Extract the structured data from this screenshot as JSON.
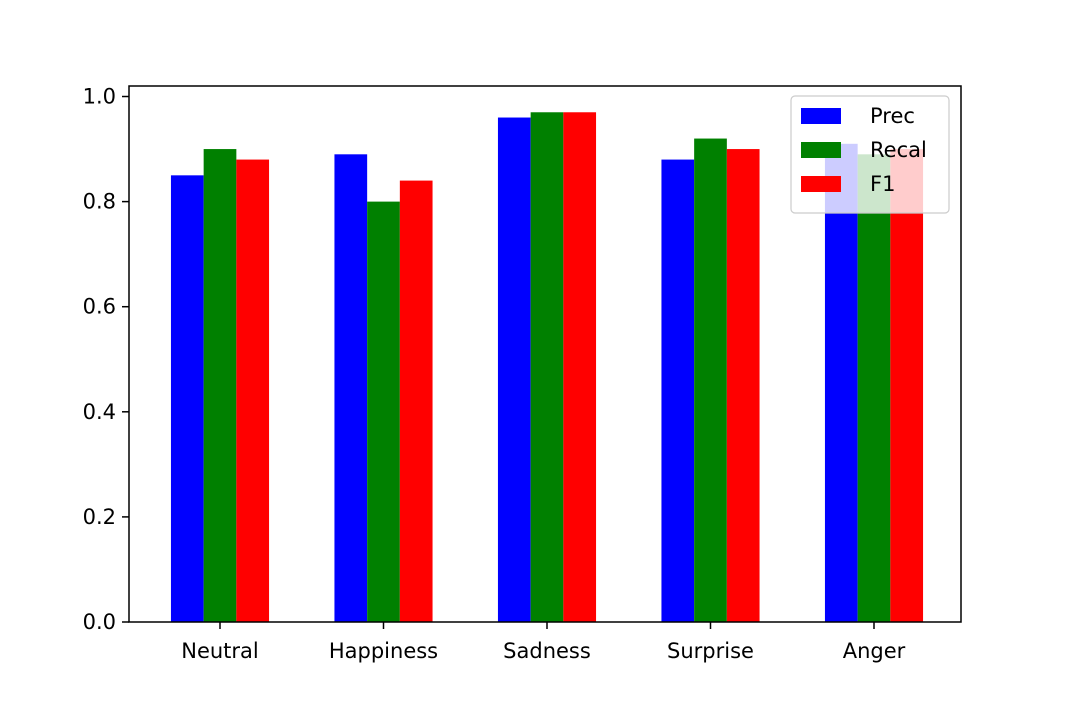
{
  "chart_data": {
    "type": "bar",
    "title": "",
    "xlabel": "",
    "ylabel": "",
    "categories": [
      "Neutral",
      "Happiness",
      "Sadness",
      "Surprise",
      "Anger"
    ],
    "series": [
      {
        "name": "Prec",
        "color": "#0000ff",
        "values": [
          0.85,
          0.89,
          0.96,
          0.88,
          0.91
        ]
      },
      {
        "name": "Recal",
        "color": "#008000",
        "values": [
          0.9,
          0.8,
          0.97,
          0.92,
          0.89
        ]
      },
      {
        "name": "F1",
        "color": "#ff0000",
        "values": [
          0.88,
          0.84,
          0.97,
          0.9,
          0.9
        ]
      }
    ],
    "ylim": [
      0.0,
      1.02
    ],
    "yticks": [
      "0.0",
      "0.2",
      "0.4",
      "0.6",
      "0.8",
      "1.0"
    ],
    "grid": false,
    "legend_position": "top-right"
  }
}
